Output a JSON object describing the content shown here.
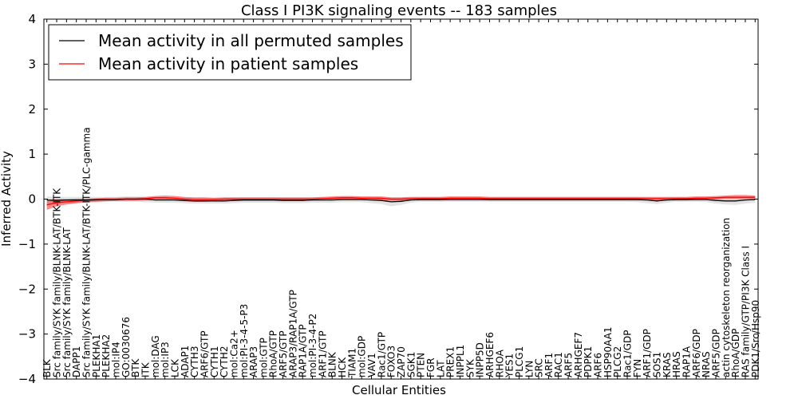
{
  "chart_data": {
    "type": "line",
    "title": "Class I PI3K signaling events -- 183 samples",
    "xlabel": "Cellular Entities",
    "ylabel": "Inferred Activity",
    "ylim": [
      -4,
      4
    ],
    "yticks": [
      -4,
      -3,
      -2,
      -1,
      0,
      1,
      2,
      3,
      4
    ],
    "ytick_labels": [
      "−4",
      "−3",
      "−2",
      "−1",
      "0",
      "1",
      "2",
      "3",
      "4"
    ],
    "legend_position": "top-left",
    "categories": [
      "BLK",
      "Src family/SYK family/BLNK-LAT/BTK-ITK",
      "Src family/SYK family/BLNK-LAT",
      "DAPP1",
      "Src family/SYK family/BLNK-LAT/BTK-ITK/PLC-gamma",
      "PLEKHA1",
      "PLEKHA2",
      "mol:IP4",
      "GO:0030676",
      "BTK",
      "ITK",
      "mol:DAG",
      "mol:IP3",
      "LCK",
      "ADAP1",
      "CYTH3",
      "ARF6/GTP",
      "CYTH1",
      "CYTH2",
      "mol:Ca2+",
      "mol:PI-3-4-5-P3",
      "ARAP3",
      "mol:GTP",
      "RhoA/GTP",
      "ARF5/GTP",
      "ARAP3/RAP1A/GTP",
      "RAP1A/GTP",
      "mol:PI-3-4-P2",
      "ARF1/GTP",
      "BLNK",
      "HCK",
      "TIAM1",
      "mol:GDP",
      "VAV1",
      "Rac1/GTP",
      "FOXO3",
      "ZAP70",
      "SGK1",
      "PTEN",
      "FGR",
      "LAT",
      "PREX1",
      "INPPL1",
      "SYK",
      "INPP5D",
      "ARHGEF6",
      "RHOA",
      "YES1",
      "PLCG1",
      "LYN",
      "SRC",
      "ARF1",
      "RAC1",
      "ARF5",
      "ARHGEF7",
      "PDPK1",
      "ARF6",
      "HSP90AA1",
      "PLCG2",
      "Rac1/GDP",
      "FYN",
      "ARF1/GDP",
      "SOS1",
      "KRAS",
      "HRAS",
      "RAP1A",
      "ARF6/GDP",
      "NRAS",
      "ARF5/GDP",
      "actin cytoskeleton reorganization",
      "RhoA/GDP",
      "RAS family/GTP/PI3K Class I",
      "PDK1/Src/Hsp90"
    ],
    "series": [
      {
        "name": "Mean activity in all permuted samples",
        "color": "#000000",
        "values": [
          -0.02,
          -0.03,
          -0.02,
          -0.02,
          -0.02,
          -0.01,
          -0.01,
          -0.01,
          0.0,
          0.0,
          0.0,
          -0.02,
          -0.02,
          -0.02,
          -0.03,
          -0.04,
          -0.04,
          -0.04,
          -0.04,
          -0.03,
          -0.02,
          -0.02,
          -0.02,
          -0.02,
          -0.03,
          -0.03,
          -0.03,
          -0.02,
          -0.02,
          -0.02,
          -0.01,
          -0.01,
          -0.01,
          -0.02,
          -0.03,
          -0.06,
          -0.05,
          -0.02,
          -0.01,
          -0.01,
          -0.01,
          -0.01,
          -0.01,
          -0.01,
          -0.01,
          -0.01,
          -0.01,
          -0.01,
          -0.01,
          -0.01,
          -0.01,
          -0.01,
          -0.01,
          -0.01,
          -0.01,
          -0.01,
          -0.01,
          -0.01,
          -0.01,
          -0.01,
          -0.01,
          -0.02,
          -0.04,
          -0.02,
          -0.01,
          -0.01,
          -0.01,
          -0.01,
          -0.03,
          -0.04,
          -0.04,
          -0.02,
          -0.01
        ],
        "band_low": [
          -0.12,
          -0.12,
          -0.1,
          -0.1,
          -0.08,
          -0.07,
          -0.06,
          -0.06,
          -0.06,
          -0.06,
          -0.07,
          -0.08,
          -0.08,
          -0.08,
          -0.09,
          -0.1,
          -0.1,
          -0.1,
          -0.1,
          -0.09,
          -0.08,
          -0.08,
          -0.08,
          -0.08,
          -0.09,
          -0.09,
          -0.09,
          -0.08,
          -0.08,
          -0.08,
          -0.07,
          -0.07,
          -0.07,
          -0.09,
          -0.11,
          -0.16,
          -0.13,
          -0.08,
          -0.06,
          -0.06,
          -0.06,
          -0.06,
          -0.06,
          -0.06,
          -0.06,
          -0.06,
          -0.06,
          -0.06,
          -0.06,
          -0.06,
          -0.06,
          -0.06,
          -0.06,
          -0.06,
          -0.06,
          -0.06,
          -0.06,
          -0.06,
          -0.06,
          -0.06,
          -0.07,
          -0.09,
          -0.11,
          -0.08,
          -0.06,
          -0.06,
          -0.06,
          -0.07,
          -0.1,
          -0.12,
          -0.13,
          -0.1,
          -0.08
        ],
        "band_high": [
          0.06,
          0.05,
          0.05,
          0.05,
          0.05,
          0.05,
          0.05,
          0.05,
          0.06,
          0.06,
          0.05,
          0.04,
          0.04,
          0.04,
          0.03,
          0.02,
          0.02,
          0.02,
          0.02,
          0.03,
          0.04,
          0.04,
          0.04,
          0.04,
          0.03,
          0.03,
          0.03,
          0.04,
          0.04,
          0.04,
          0.05,
          0.05,
          0.05,
          0.04,
          0.04,
          0.03,
          0.03,
          0.04,
          0.05,
          0.05,
          0.05,
          0.05,
          0.05,
          0.05,
          0.05,
          0.05,
          0.05,
          0.05,
          0.05,
          0.05,
          0.05,
          0.05,
          0.05,
          0.05,
          0.05,
          0.05,
          0.05,
          0.05,
          0.05,
          0.05,
          0.05,
          0.04,
          0.03,
          0.04,
          0.05,
          0.05,
          0.05,
          0.05,
          0.04,
          0.04,
          0.04,
          0.05,
          0.06
        ]
      },
      {
        "name": "Mean activity in patient samples",
        "color": "#ff0000",
        "values": [
          -0.13,
          -0.08,
          -0.06,
          -0.04,
          -0.03,
          -0.02,
          -0.01,
          -0.01,
          0.0,
          0.0,
          0.01,
          0.03,
          0.03,
          0.02,
          0.0,
          -0.01,
          -0.01,
          -0.01,
          0.0,
          0.0,
          0.0,
          0.0,
          0.0,
          0.0,
          0.0,
          0.0,
          0.0,
          0.0,
          0.01,
          0.02,
          0.03,
          0.03,
          0.02,
          0.02,
          0.02,
          0.0,
          0.0,
          0.01,
          0.01,
          0.01,
          0.01,
          0.02,
          0.02,
          0.02,
          0.02,
          0.01,
          0.01,
          0.01,
          0.01,
          0.01,
          0.01,
          0.01,
          0.01,
          0.01,
          0.01,
          0.01,
          0.01,
          0.01,
          0.01,
          0.01,
          0.01,
          0.01,
          0.01,
          0.01,
          0.01,
          0.01,
          0.02,
          0.02,
          0.03,
          0.04,
          0.04,
          0.04,
          0.04
        ],
        "band_low": [
          -0.24,
          -0.16,
          -0.12,
          -0.09,
          -0.07,
          -0.06,
          -0.05,
          -0.04,
          -0.04,
          -0.04,
          -0.03,
          -0.01,
          -0.02,
          -0.03,
          -0.05,
          -0.06,
          -0.06,
          -0.05,
          -0.04,
          -0.04,
          -0.04,
          -0.04,
          -0.04,
          -0.04,
          -0.04,
          -0.04,
          -0.04,
          -0.03,
          -0.02,
          -0.02,
          -0.01,
          -0.01,
          -0.02,
          -0.03,
          -0.03,
          -0.04,
          -0.04,
          -0.03,
          -0.03,
          -0.03,
          -0.03,
          -0.02,
          -0.02,
          -0.02,
          -0.02,
          -0.03,
          -0.03,
          -0.03,
          -0.03,
          -0.03,
          -0.03,
          -0.03,
          -0.03,
          -0.03,
          -0.03,
          -0.03,
          -0.03,
          -0.03,
          -0.03,
          -0.03,
          -0.03,
          -0.03,
          -0.03,
          -0.03,
          -0.03,
          -0.03,
          -0.02,
          -0.02,
          -0.01,
          0.0,
          0.0,
          0.0,
          0.0
        ],
        "band_high": [
          -0.02,
          0.0,
          0.0,
          0.01,
          0.01,
          0.02,
          0.03,
          0.03,
          0.04,
          0.04,
          0.05,
          0.07,
          0.08,
          0.07,
          0.05,
          0.04,
          0.04,
          0.03,
          0.04,
          0.04,
          0.04,
          0.04,
          0.04,
          0.04,
          0.04,
          0.04,
          0.04,
          0.04,
          0.05,
          0.06,
          0.07,
          0.07,
          0.06,
          0.06,
          0.06,
          0.04,
          0.04,
          0.05,
          0.05,
          0.05,
          0.05,
          0.06,
          0.06,
          0.06,
          0.06,
          0.05,
          0.05,
          0.05,
          0.05,
          0.05,
          0.05,
          0.05,
          0.05,
          0.05,
          0.05,
          0.05,
          0.05,
          0.05,
          0.05,
          0.05,
          0.05,
          0.05,
          0.05,
          0.05,
          0.05,
          0.05,
          0.06,
          0.06,
          0.07,
          0.08,
          0.09,
          0.09,
          0.08
        ]
      }
    ]
  }
}
